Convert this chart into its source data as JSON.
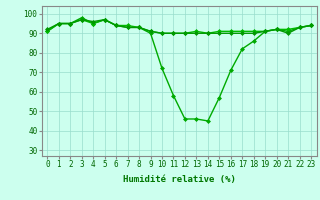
{
  "series": [
    {
      "y": [
        91,
        95,
        95,
        98,
        95,
        97,
        94,
        93,
        93,
        90,
        72,
        58,
        46,
        46,
        45,
        57,
        71,
        82,
        86,
        91,
        92,
        91,
        93,
        94
      ],
      "color": "#00aa00",
      "marker": "D",
      "markersize": 2.0,
      "linewidth": 1.0
    },
    {
      "y": [
        91,
        95,
        95,
        97,
        95,
        97,
        94,
        94,
        93,
        91,
        90,
        90,
        90,
        91,
        90,
        91,
        91,
        91,
        91,
        91,
        92,
        92,
        93,
        94
      ],
      "color": "#00bb00",
      "marker": "D",
      "markersize": 2.0,
      "linewidth": 1.0
    },
    {
      "y": [
        92,
        95,
        95,
        97,
        96,
        97,
        94,
        93,
        93,
        91,
        90,
        90,
        90,
        90,
        90,
        90,
        90,
        90,
        90,
        91,
        92,
        90,
        93,
        94
      ],
      "color": "#009900",
      "marker": "D",
      "markersize": 2.0,
      "linewidth": 1.0
    }
  ],
  "xlabel": "Humidité relative (%)",
  "xlabel_fontsize": 6.5,
  "xlabel_color": "#007700",
  "xlabel_bold": true,
  "xtick_labels": [
    "0",
    "1",
    "2",
    "3",
    "4",
    "5",
    "6",
    "7",
    "8",
    "9",
    "10",
    "11",
    "12",
    "13",
    "14",
    "15",
    "16",
    "17",
    "18",
    "19",
    "20",
    "21",
    "22",
    "23"
  ],
  "ytick_values": [
    30,
    40,
    50,
    60,
    70,
    80,
    90,
    100
  ],
  "ylim": [
    27,
    104
  ],
  "xlim": [
    -0.5,
    23.5
  ],
  "background_color": "#ccffee",
  "plot_bg_color": "#ccffee",
  "grid_color": "#99ddcc",
  "tick_fontsize": 5.5,
  "tick_color": "#006600"
}
